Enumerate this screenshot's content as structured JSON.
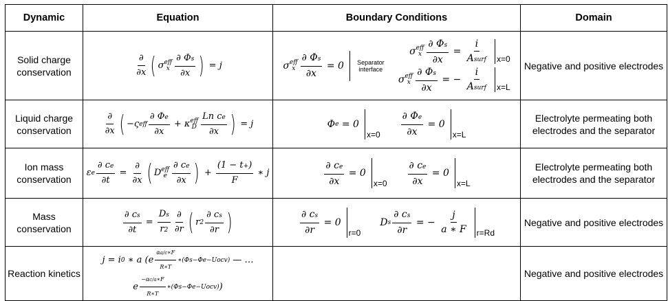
{
  "headers": [
    "Dynamic",
    "Equation",
    "Boundary Conditions",
    "Domain"
  ],
  "rows": [
    {
      "dynamic": "Solid charge conservation",
      "equation": [
        [
          {
            "frac": [
              [
                "∂"
              ],
              [
                "∂x"
              ]
            ]
          },
          {
            "paren": [
              "σ",
              {
                "ss": [
                  "x",
                  "eff"
                ]
              },
              {
                "frac": [
                  [
                    "∂ Φ",
                    {
                      "sub": "s"
                    }
                  ],
                  [
                    "∂x"
                  ]
                ]
              }
            ]
          },
          " = j"
        ]
      ],
      "bc_left": [
        [
          "σ",
          {
            "ss": [
              "x",
              "eff"
            ]
          },
          {
            "frac": [
              [
                "∂ Φ",
                {
                  "sub": "s"
                }
              ],
              [
                "∂x"
              ]
            ]
          },
          " = 0",
          {
            "note": "Separator interface"
          }
        ]
      ],
      "bc_right": [
        [
          "σ",
          {
            "ss": [
              "x",
              "eff"
            ]
          },
          {
            "frac": [
              [
                "∂ Φ",
                {
                  "sub": "s"
                }
              ],
              [
                "∂x"
              ]
            ]
          },
          " = ",
          {
            "frac": [
              [
                "i"
              ],
              [
                "A",
                {
                  "sub": "surf"
                }
              ]
            ]
          },
          {
            "bar": "x=0"
          }
        ],
        [
          "σ",
          {
            "ss": [
              "x",
              "eff"
            ]
          },
          {
            "frac": [
              [
                "∂ Φ",
                {
                  "sub": "s"
                }
              ],
              [
                "∂x"
              ]
            ]
          },
          " = − ",
          {
            "frac": [
              [
                "i"
              ],
              [
                "A",
                {
                  "sub": "surf"
                }
              ]
            ]
          },
          {
            "bar": "x=L"
          }
        ]
      ],
      "domain": "Negative and positive electrodes"
    },
    {
      "dynamic": "Liquid charge conservation",
      "equation": [
        [
          {
            "frac": [
              [
                "∂"
              ],
              [
                "∂x"
              ]
            ]
          },
          {
            "paren": [
              "−ς",
              {
                "sup": "eff"
              },
              {
                "frac": [
                  [
                    "∂ Φ",
                    {
                      "sub": "e"
                    }
                  ],
                  [
                    "∂x"
                  ]
                ]
              },
              " + κ",
              {
                "ss": [
                  "D",
                  "eff"
                ]
              },
              {
                "frac": [
                  [
                    "Ln c",
                    {
                      "sub": "e"
                    }
                  ],
                  [
                    "∂x"
                  ]
                ]
              }
            ]
          },
          " = j"
        ]
      ],
      "bc": [
        [
          "Φ",
          {
            "sub": "e"
          },
          " = 0",
          {
            "bar": "x=0"
          }
        ],
        [
          {
            "frac": [
              [
                "∂ Φ",
                {
                  "sub": "e"
                }
              ],
              [
                "∂x"
              ]
            ]
          },
          " = 0",
          {
            "bar": "x=L"
          }
        ]
      ],
      "domain": "Electrolyte permeating both electrodes and the separator"
    },
    {
      "dynamic": "Ion mass conservation",
      "equation": [
        [
          "ε",
          {
            "sub": "e"
          },
          {
            "frac": [
              [
                "∂ c",
                {
                  "sub": "e"
                }
              ],
              [
                "∂t"
              ]
            ]
          },
          " = ",
          {
            "frac": [
              [
                "∂"
              ],
              [
                "∂x"
              ]
            ]
          },
          {
            "paren": [
              "D",
              {
                "ss": [
                  "e",
                  "eff"
                ]
              },
              {
                "frac": [
                  [
                    "∂ c",
                    {
                      "sub": "e"
                    }
                  ],
                  [
                    "∂x"
                  ]
                ]
              }
            ]
          },
          " + ",
          {
            "frac": [
              [
                "(1 − t",
                {
                  "sub": "+"
                },
                ")"
              ],
              [
                "F"
              ]
            ]
          },
          " ∗ j"
        ]
      ],
      "bc": [
        [
          {
            "frac": [
              [
                "∂ c",
                {
                  "sub": "e"
                }
              ],
              [
                "∂x"
              ]
            ]
          },
          " = 0",
          {
            "bar": "x=0"
          }
        ],
        [
          {
            "frac": [
              [
                "∂ c",
                {
                  "sub": "e"
                }
              ],
              [
                "∂x"
              ]
            ]
          },
          " = 0",
          {
            "bar": "x=L"
          }
        ]
      ],
      "domain": "Electrolyte permeating both electrodes and the separator"
    },
    {
      "dynamic": "Mass conservation",
      "equation": [
        [
          {
            "frac": [
              [
                "∂ c",
                {
                  "sub": "s"
                }
              ],
              [
                "∂t"
              ]
            ]
          },
          " = ",
          {
            "frac": [
              [
                "D",
                {
                  "sub": "s"
                }
              ],
              [
                "r",
                {
                  "sup": "2"
                }
              ]
            ]
          },
          {
            "frac": [
              [
                "∂"
              ],
              [
                "∂r"
              ]
            ]
          },
          {
            "paren": [
              "r",
              {
                "sup": "2"
              },
              {
                "frac": [
                  [
                    "∂ c",
                    {
                      "sub": "s"
                    }
                  ],
                  [
                    "∂r"
                  ]
                ]
              }
            ]
          }
        ]
      ],
      "bc": [
        [
          {
            "frac": [
              [
                "∂ c",
                {
                  "sub": "s"
                }
              ],
              [
                "∂r"
              ]
            ]
          },
          " = 0",
          {
            "bar": "r=0"
          }
        ],
        [
          "D",
          {
            "sub": "s"
          },
          {
            "frac": [
              [
                "∂ c",
                {
                  "sub": "s"
                }
              ],
              [
                "∂r"
              ]
            ]
          },
          " = − ",
          {
            "frac": [
              [
                "j"
              ],
              [
                "a ∗ F"
              ]
            ]
          },
          {
            "bar": "r=Rd"
          }
        ]
      ],
      "domain": "Negative and positive electrodes"
    },
    {
      "dynamic": "Reaction kinetics",
      "equation": [
        [
          "j = i",
          {
            "sub": "0"
          },
          " ∗ a (e",
          {
            "sup": [
              {
                "frac": [
                  [
                    "α",
                    {
                      "sub": "a/c"
                    },
                    "∗F"
                  ],
                  [
                    "R∗T"
                  ]
                ]
              },
              "∗(Φ",
              {
                "sub": "s"
              },
              "−Φ",
              {
                "sub": "e"
              },
              "−U",
              {
                "sub": "ocv"
              },
              ")"
            ]
          },
          " — …"
        ],
        [
          "e",
          {
            "sup": [
              {
                "frac": [
                  [
                    "−α",
                    {
                      "sub": "c/a"
                    },
                    "∗F"
                  ],
                  [
                    "R∗T"
                  ]
                ]
              },
              "∗(Φ",
              {
                "sub": "s"
              },
              "−Φ",
              {
                "sub": "e"
              },
              "−U",
              {
                "sub": "ocv"
              },
              ")"
            ]
          },
          ")"
        ]
      ],
      "bc": [],
      "domain": "Negative and positive electrodes"
    }
  ]
}
